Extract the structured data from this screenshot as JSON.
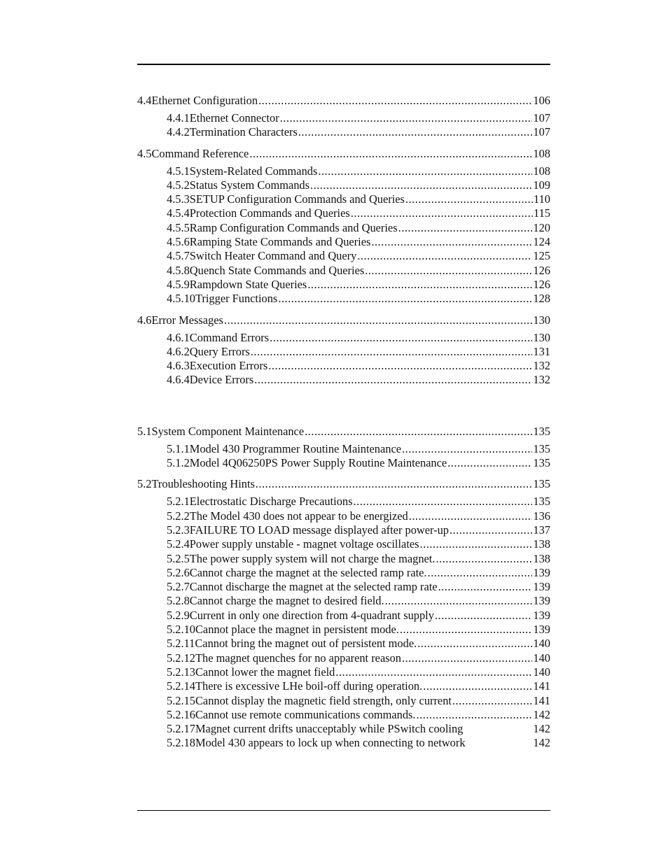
{
  "entries": [
    {
      "level": 1,
      "num": "4.4",
      "title": "Ethernet Configuration",
      "page": "106"
    },
    {
      "level": 2,
      "num": "4.4.1",
      "title": "Ethernet Connector",
      "page": "107"
    },
    {
      "level": 2,
      "num": "4.4.2",
      "title": "Termination Characters",
      "page": "107"
    },
    {
      "level": 1,
      "num": "4.5",
      "title": "Command Reference",
      "page": "108"
    },
    {
      "level": 2,
      "num": "4.5.1",
      "title": "System-Related Commands",
      "page": "108"
    },
    {
      "level": 2,
      "num": "4.5.2",
      "title": "Status System Commands",
      "page": "109"
    },
    {
      "level": 2,
      "num": "4.5.3",
      "title": "SETUP Configuration Commands and Queries",
      "page": "110"
    },
    {
      "level": 2,
      "num": "4.5.4",
      "title": "Protection Commands and Queries",
      "page": "115"
    },
    {
      "level": 2,
      "num": "4.5.5",
      "title": "Ramp Configuration Commands and Queries",
      "page": "120"
    },
    {
      "level": 2,
      "num": "4.5.6",
      "title": "Ramping State Commands and Queries",
      "page": "124"
    },
    {
      "level": 2,
      "num": "4.5.7",
      "title": "Switch Heater Command and Query",
      "page": "125"
    },
    {
      "level": 2,
      "num": "4.5.8",
      "title": "Quench State Commands and Queries",
      "page": "126"
    },
    {
      "level": 2,
      "num": "4.5.9",
      "title": "Rampdown State Queries",
      "page": "126"
    },
    {
      "level": 2,
      "num": "4.5.10",
      "title": "Trigger Functions",
      "page": "128"
    },
    {
      "level": 1,
      "num": "4.6",
      "title": "Error Messages",
      "page": "130"
    },
    {
      "level": 2,
      "num": "4.6.1",
      "title": "Command Errors",
      "page": "130"
    },
    {
      "level": 2,
      "num": "4.6.2",
      "title": "Query Errors",
      "page": "131"
    },
    {
      "level": 2,
      "num": "4.6.3",
      "title": "Execution Errors",
      "page": "132"
    },
    {
      "level": 2,
      "num": "4.6.4",
      "title": "Device Errors",
      "page": "132"
    },
    {
      "level": 1,
      "num": "5.1",
      "title": "System Component Maintenance",
      "page": "135",
      "gap": true
    },
    {
      "level": 2,
      "num": "5.1.1",
      "title": "Model 430 Programmer Routine Maintenance",
      "page": "135"
    },
    {
      "level": 2,
      "num": "5.1.2",
      "title": "Model 4Q06250PS Power Supply Routine Maintenance",
      "page": "135"
    },
    {
      "level": 1,
      "num": "5.2",
      "title": "Troubleshooting Hints",
      "page": "135"
    },
    {
      "level": 2,
      "num": "5.2.1",
      "title": "Electrostatic Discharge Precautions",
      "page": "135"
    },
    {
      "level": 2,
      "num": "5.2.2",
      "title": "The Model 430 does not appear to be energized",
      "page": "136"
    },
    {
      "level": 2,
      "num": "5.2.3",
      "title": "FAILURE TO LOAD message displayed after power-up",
      "page": "137"
    },
    {
      "level": 2,
      "num": "5.2.4",
      "title": "Power supply unstable - magnet voltage oscillates",
      "page": "138"
    },
    {
      "level": 2,
      "num": "5.2.5",
      "title": "The power supply system will not charge the magnet.",
      "page": "138"
    },
    {
      "level": 2,
      "num": "5.2.6",
      "title": "Cannot charge the magnet at the selected ramp rate.",
      "page": "139"
    },
    {
      "level": 2,
      "num": "5.2.7",
      "title": "Cannot discharge the magnet at the selected ramp rate",
      "page": "139"
    },
    {
      "level": 2,
      "num": "5.2.8",
      "title": "Cannot charge the magnet to desired field.",
      "page": "139"
    },
    {
      "level": 2,
      "num": "5.2.9",
      "title": "Current in only one direction from 4-quadrant supply",
      "page": "139"
    },
    {
      "level": 2,
      "num": "5.2.10",
      "title": "Cannot place the magnet in persistent mode.",
      "page": "139"
    },
    {
      "level": 2,
      "num": "5.2.11",
      "title": "Cannot bring the magnet out of persistent mode.",
      "page": "140"
    },
    {
      "level": 2,
      "num": "5.2.12",
      "title": "The magnet quenches for no apparent reason",
      "page": "140"
    },
    {
      "level": 2,
      "num": "5.2.13",
      "title": "Cannot lower the magnet field",
      "page": "140"
    },
    {
      "level": 2,
      "num": "5.2.14",
      "title": "There is excessive LHe boil-off during operation.",
      "page": "141"
    },
    {
      "level": 2,
      "num": "5.2.15",
      "title": "Cannot display the magnetic field strength, only current",
      "page": "141"
    },
    {
      "level": 2,
      "num": "5.2.16",
      "title": "Cannot use remote communications commands.",
      "page": "142"
    },
    {
      "level": 2,
      "num": "5.2.17",
      "title": "Magnet current drifts unacceptably while PSwitch cooling",
      "page": "142",
      "noleader": true
    },
    {
      "level": 2,
      "num": "5.2.18",
      "title": "Model 430 appears to lock up when connecting to network",
      "page": "142",
      "noleader": true
    }
  ]
}
